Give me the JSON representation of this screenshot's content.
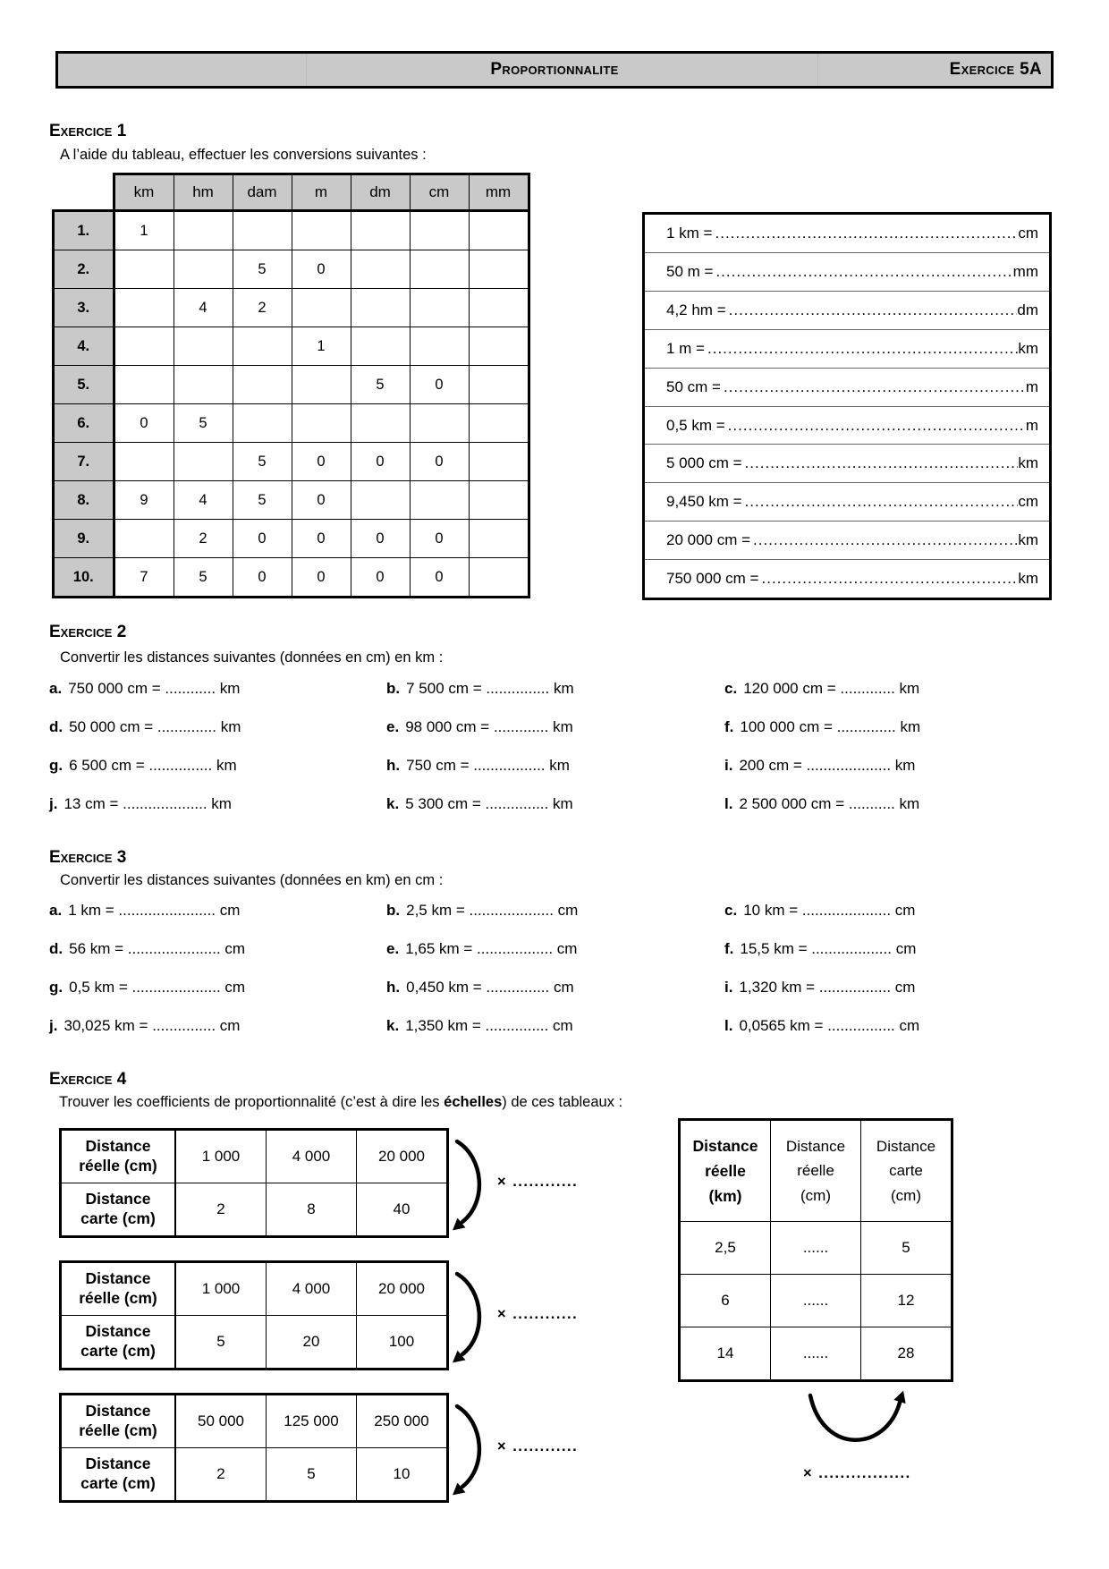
{
  "header": {
    "title": "Proportionnalite",
    "badge": "Exercice 5A"
  },
  "ex1": {
    "heading": "Exercice 1",
    "intro": "A l’aide du tableau, effectuer les conversions suivantes :",
    "units": [
      "km",
      "hm",
      "dam",
      "m",
      "dm",
      "cm",
      "mm"
    ],
    "rows": [
      {
        "label": "1.",
        "cells": [
          "1",
          "",
          "",
          "",
          "",
          "",
          ""
        ]
      },
      {
        "label": "2.",
        "cells": [
          "",
          "",
          "5",
          "0",
          "",
          "",
          ""
        ]
      },
      {
        "label": "3.",
        "cells": [
          "",
          "4",
          "2",
          "",
          "",
          "",
          ""
        ]
      },
      {
        "label": "4.",
        "cells": [
          "",
          "",
          "",
          "1",
          "",
          "",
          ""
        ]
      },
      {
        "label": "5.",
        "cells": [
          "",
          "",
          "",
          "",
          "5",
          "0",
          ""
        ]
      },
      {
        "label": "6.",
        "cells": [
          "0",
          "5",
          "",
          "",
          "",
          "",
          ""
        ]
      },
      {
        "label": "7.",
        "cells": [
          "",
          "",
          "5",
          "0",
          "0",
          "0",
          ""
        ]
      },
      {
        "label": "8.",
        "cells": [
          "9",
          "4",
          "5",
          "0",
          "",
          "",
          ""
        ]
      },
      {
        "label": "9.",
        "cells": [
          "",
          "2",
          "0",
          "0",
          "0",
          "0",
          ""
        ]
      },
      {
        "label": "10.",
        "cells": [
          "7",
          "5",
          "0",
          "0",
          "0",
          "0",
          ""
        ]
      }
    ],
    "dots": "................................................................................",
    "conversions": [
      {
        "lhs": "1 km =",
        "unit": "cm"
      },
      {
        "lhs": "50 m =",
        "unit": "mm"
      },
      {
        "lhs": "4,2 hm =",
        "unit": "dm"
      },
      {
        "lhs": "1 m =",
        "unit": "km"
      },
      {
        "lhs": "50 cm =",
        "unit": "m"
      },
      {
        "lhs": "0,5 km =",
        "unit": "m"
      },
      {
        "lhs": "5 000 cm =",
        "unit": "km"
      },
      {
        "lhs": "9,450 km =",
        "unit": "cm"
      },
      {
        "lhs": "20 000 cm =",
        "unit": "km"
      },
      {
        "lhs": "750 000 cm =",
        "unit": "km"
      }
    ]
  },
  "ex2": {
    "heading": "Exercice 2",
    "intro": "Convertir les distances suivantes (données en cm) en km :",
    "items": [
      {
        "k": "a.",
        "t": "750 000 cm = ............ km"
      },
      {
        "k": "b.",
        "t": "7 500 cm = ............... km"
      },
      {
        "k": "c.",
        "t": "120 000 cm = ............. km"
      },
      {
        "k": "d.",
        "t": "50 000 cm = .............. km"
      },
      {
        "k": "e.",
        "t": "98 000 cm = ............. km"
      },
      {
        "k": "f.",
        "t": "100 000 cm = .............. km"
      },
      {
        "k": "g.",
        "t": "6 500 cm = ............... km"
      },
      {
        "k": "h.",
        "t": "750 cm = ................. km"
      },
      {
        "k": "i.",
        "t": "200 cm = .................... km"
      },
      {
        "k": "j.",
        "t": "13 cm = .................... km"
      },
      {
        "k": "k.",
        "t": "5 300 cm = ............... km"
      },
      {
        "k": "l.",
        "t": "2 500 000 cm = ........... km"
      }
    ]
  },
  "ex3": {
    "heading": "Exercice 3",
    "intro": "Convertir les distances suivantes (données en km) en cm :",
    "items": [
      {
        "k": "a.",
        "t": "1 km = ....................... cm"
      },
      {
        "k": "b.",
        "t": "2,5 km = .................... cm"
      },
      {
        "k": "c.",
        "t": "10 km = ..................... cm"
      },
      {
        "k": "d.",
        "t": "56 km = ...................... cm"
      },
      {
        "k": "e.",
        "t": "1,65 km = .................. cm"
      },
      {
        "k": "f.",
        "t": "15,5 km = ................... cm"
      },
      {
        "k": "g.",
        "t": "0,5 km = ..................... cm"
      },
      {
        "k": "h.",
        "t": "0,450 km = ............... cm"
      },
      {
        "k": "i.",
        "t": "1,320 km = ................. cm"
      },
      {
        "k": "j.",
        "t": "30,025 km = ............... cm"
      },
      {
        "k": "k.",
        "t": "1,350 km = ............... cm"
      },
      {
        "k": "l.",
        "t": "0,0565 km = ................ cm"
      }
    ]
  },
  "ex4": {
    "heading": "Exercice 4",
    "intro_pre": "Trouver les coefficients de proportionnalité (c’est à dire les ",
    "intro_bold": "échelles",
    "intro_post": ") de ces tableaux :",
    "left_tables": [
      {
        "row1_label": "Distance\nréelle (cm)",
        "row2_label": "Distance\ncarte (cm)",
        "row1": [
          "1 000",
          "4 000",
          "20 000"
        ],
        "row2": [
          "2",
          "8",
          "40"
        ],
        "factor": "× ............"
      },
      {
        "row1_label": "Distance\nréelle (cm)",
        "row2_label": "Distance\ncarte (cm)",
        "row1": [
          "1 000",
          "4 000",
          "20 000"
        ],
        "row2": [
          "5",
          "20",
          "100"
        ],
        "factor": "× ............"
      },
      {
        "row1_label": "Distance\nréelle (cm)",
        "row2_label": "Distance\ncarte (cm)",
        "row1": [
          "50 000",
          "125 000",
          "250 000"
        ],
        "row2": [
          "2",
          "5",
          "10"
        ],
        "factor": "× ............"
      }
    ],
    "right_table": {
      "headers": [
        "Distance\nréelle\n(km)",
        "Distance\nréelle\n(cm)",
        "Distance\ncarte\n(cm)"
      ],
      "rows": [
        [
          "2,5",
          "......",
          "5"
        ],
        [
          "6",
          "......",
          "12"
        ],
        [
          "14",
          "......",
          "28"
        ]
      ],
      "factor": "× ................."
    }
  }
}
